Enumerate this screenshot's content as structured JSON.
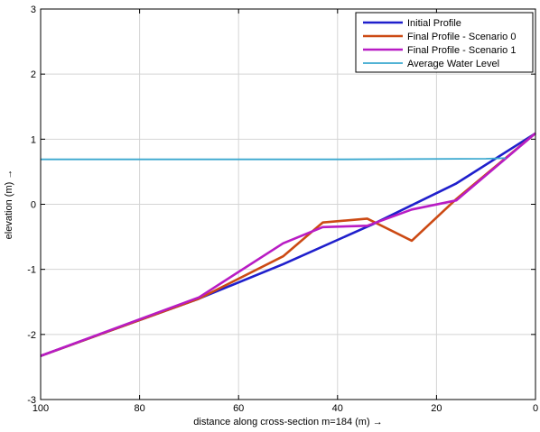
{
  "chart_data": {
    "type": "line",
    "title": "",
    "xlabel": "distance along cross-section m=184 (m) →",
    "ylabel": "elevation (m) →",
    "xlim": [
      100,
      0
    ],
    "ylim": [
      -3,
      3
    ],
    "x_reversed": true,
    "xticks": [
      100,
      80,
      60,
      40,
      20,
      0
    ],
    "yticks": [
      -3,
      -2,
      -1,
      0,
      1,
      2,
      3
    ],
    "grid": true,
    "legend_position": "top-right",
    "series": [
      {
        "name": "Initial Profile",
        "color": "#1f1fcc",
        "x": [
          100,
          68,
          51,
          33,
          16,
          0
        ],
        "y": [
          -2.33,
          -1.45,
          -0.92,
          -0.31,
          0.32,
          1.09
        ]
      },
      {
        "name": "Final Profile - Scenario 0",
        "color": "#cc4a14",
        "x": [
          100,
          68,
          51,
          43,
          34,
          25,
          16,
          0
        ],
        "y": [
          -2.33,
          -1.45,
          -0.8,
          -0.28,
          -0.22,
          -0.56,
          0.08,
          1.09
        ]
      },
      {
        "name": "Final Profile - Scenario 1",
        "color": "#b81cc4",
        "x": [
          100,
          68,
          51,
          43,
          34,
          25,
          16,
          0
        ],
        "y": [
          -2.33,
          -1.43,
          -0.6,
          -0.35,
          -0.33,
          -0.08,
          0.06,
          1.09
        ]
      },
      {
        "name": "Average Water Level",
        "color": "#3aa8cf",
        "x": [
          100,
          70,
          40,
          10,
          6
        ],
        "y": [
          0.69,
          0.69,
          0.69,
          0.7,
          0.71
        ]
      }
    ]
  }
}
